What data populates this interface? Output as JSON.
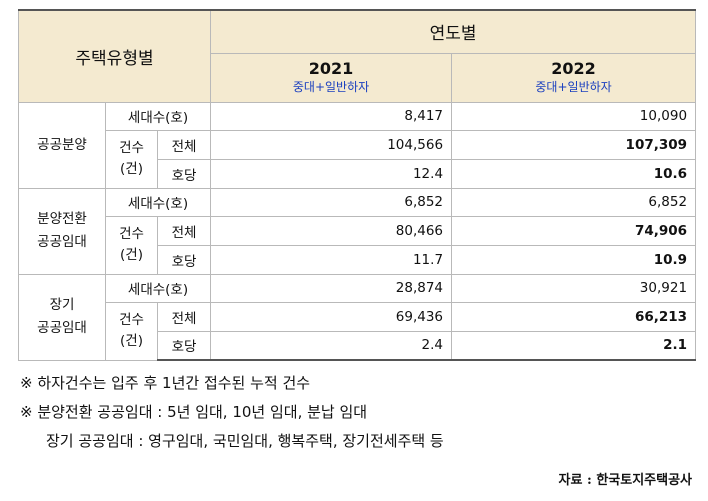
{
  "table": {
    "header": {
      "type_label": "주택유형별",
      "year_label": "연도별",
      "years": [
        {
          "year": "2021",
          "sub": "중대+일반하자"
        },
        {
          "year": "2022",
          "sub": "중대+일반하자"
        }
      ]
    },
    "row_labels": {
      "households": "세대수(호)",
      "count_line1": "건수",
      "count_line2": "(건)",
      "total": "전체",
      "per_house": "호당"
    },
    "groups": [
      {
        "line1": "공공분양",
        "line2": "",
        "households": [
          "8,417",
          "10,090"
        ],
        "total": [
          "104,566",
          "107,309"
        ],
        "per_house": [
          "12.4",
          "10.6"
        ]
      },
      {
        "line1": "분양전환",
        "line2": "공공임대",
        "households": [
          "6,852",
          "6,852"
        ],
        "total": [
          "80,466",
          "74,906"
        ],
        "per_house": [
          "11.7",
          "10.9"
        ]
      },
      {
        "line1": "장기",
        "line2": "공공임대",
        "households": [
          "28,874",
          "30,921"
        ],
        "total": [
          "69,436",
          "66,213"
        ],
        "per_house": [
          "2.4",
          "2.1"
        ]
      }
    ]
  },
  "notes": [
    "※ 하자건수는 입주 후 1년간 접수된 누적 건수",
    "※ 분양전환 공공임대 : 5년 임대, 10년 임대, 분납 임대",
    "장기 공공임대 : 영구임대, 국민임대, 행복주택, 장기전세주택 등"
  ],
  "source": "자료 : 한국토지주택공사"
}
